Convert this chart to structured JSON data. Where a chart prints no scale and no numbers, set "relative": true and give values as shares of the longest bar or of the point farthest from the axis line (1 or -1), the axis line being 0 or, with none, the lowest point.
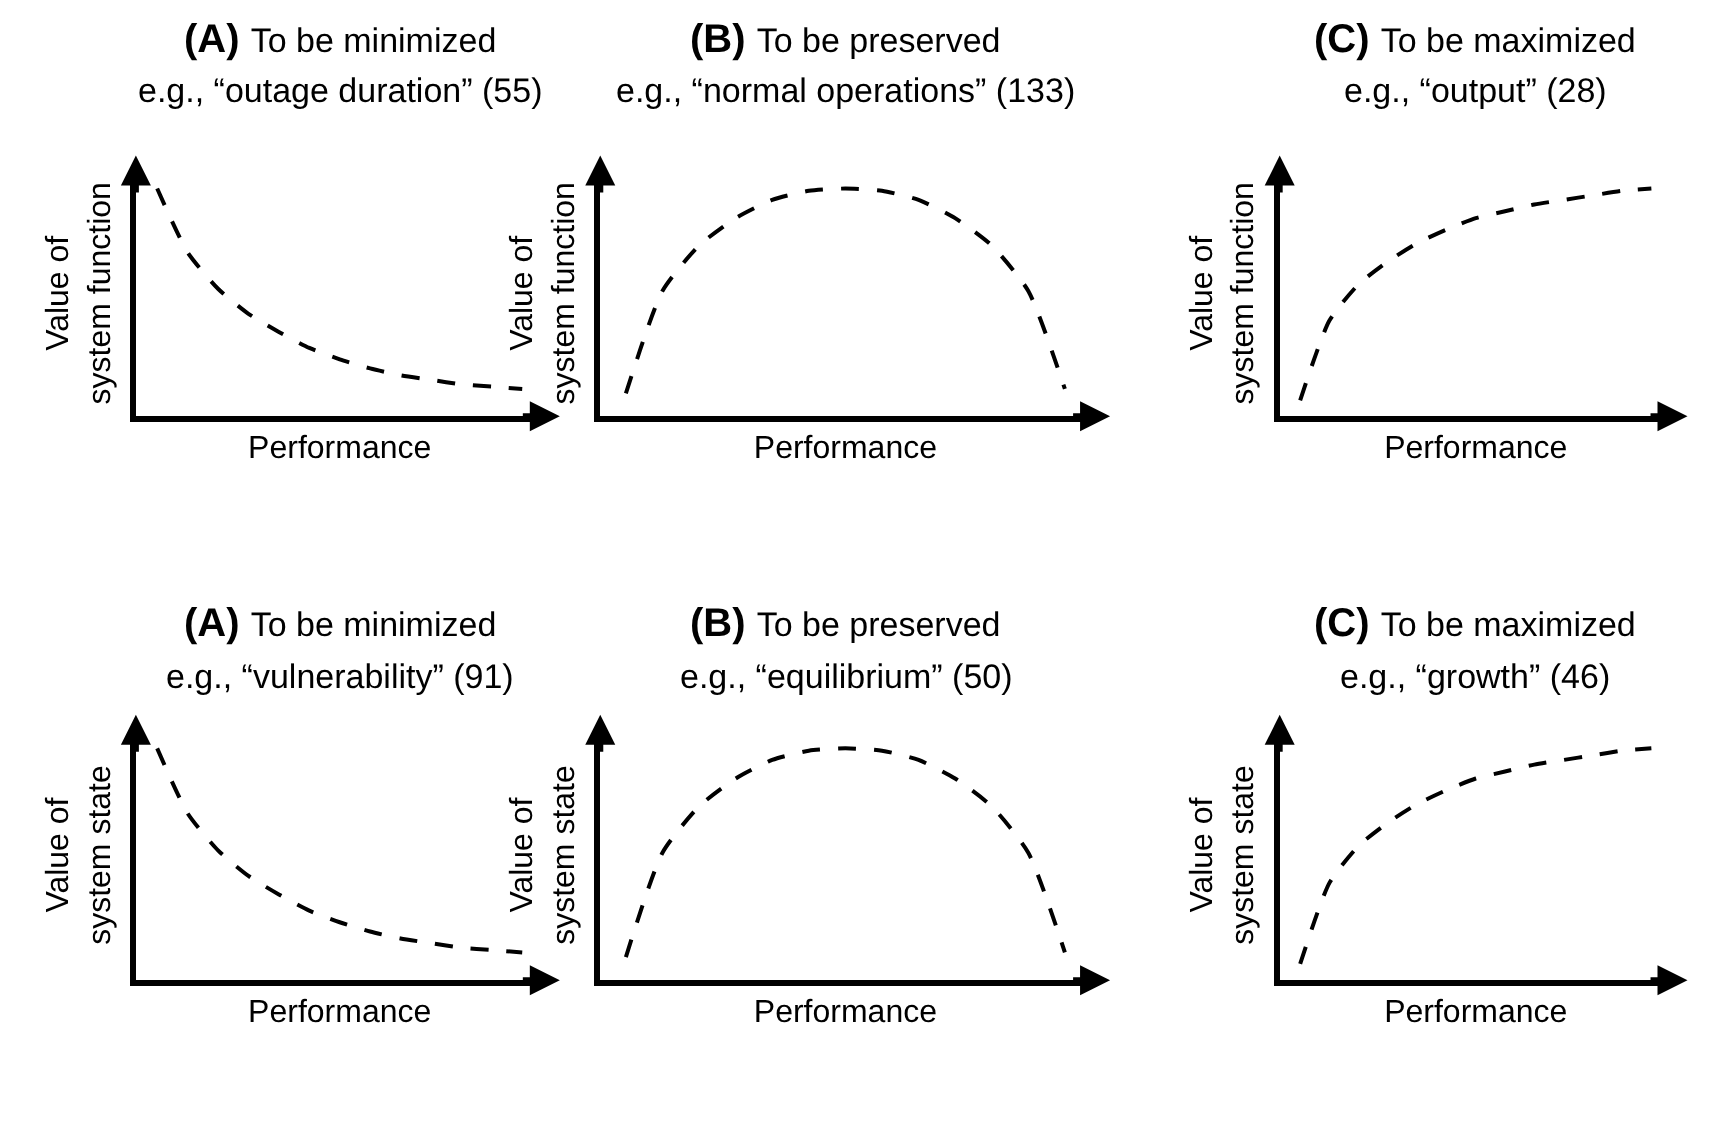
{
  "chart_data": [
    {
      "type": "line",
      "relative": true,
      "title": "(A) To be minimized",
      "subtitle": "e.g., “outage duration” (55)",
      "xlabel": "Performance",
      "ylabel": "Value of system function",
      "tick_labels": false,
      "line_style": "dashed",
      "categories": [
        null,
        null,
        null,
        null,
        null,
        null,
        null,
        null,
        null,
        null,
        null,
        null,
        null
      ],
      "series": [
        {
          "color": "#000000",
          "values": [
            1.0,
            0.72,
            0.56,
            0.45,
            0.37,
            0.3,
            0.25,
            0.21,
            0.18,
            0.16,
            0.14,
            0.13,
            0.12
          ]
        }
      ]
    },
    {
      "type": "line",
      "relative": true,
      "title": "(B) To be preserved",
      "subtitle": "e.g., “normal operations” (133)",
      "xlabel": "Performance",
      "ylabel": "Value of system function",
      "tick_labels": false,
      "line_style": "dashed",
      "categories": [
        null,
        null,
        null,
        null,
        null,
        null,
        null,
        null,
        null,
        null,
        null,
        null,
        null
      ],
      "series": [
        {
          "color": "#000000",
          "values": [
            0.1,
            0.55,
            0.75,
            0.87,
            0.95,
            0.99,
            1.0,
            0.99,
            0.95,
            0.87,
            0.75,
            0.55,
            0.12
          ]
        }
      ]
    },
    {
      "type": "line",
      "relative": true,
      "title": "(C) To be maximized",
      "subtitle": "e.g., “output” (28)",
      "xlabel": "Performance",
      "ylabel": "Value of system function",
      "tick_labels": false,
      "line_style": "dashed",
      "categories": [
        null,
        null,
        null,
        null,
        null,
        null,
        null,
        null,
        null,
        null,
        null,
        null,
        null
      ],
      "series": [
        {
          "color": "#000000",
          "values": [
            0.07,
            0.42,
            0.58,
            0.68,
            0.76,
            0.82,
            0.87,
            0.9,
            0.93,
            0.95,
            0.97,
            0.99,
            1.0
          ]
        }
      ]
    },
    {
      "type": "line",
      "relative": true,
      "title": "(A) To be minimized",
      "subtitle": "e.g., “vulnerability” (91)",
      "xlabel": "Performance",
      "ylabel": "Value of system state",
      "tick_labels": false,
      "line_style": "dashed",
      "categories": [
        null,
        null,
        null,
        null,
        null,
        null,
        null,
        null,
        null,
        null,
        null,
        null,
        null
      ],
      "series": [
        {
          "color": "#000000",
          "values": [
            1.0,
            0.72,
            0.56,
            0.45,
            0.37,
            0.3,
            0.25,
            0.21,
            0.18,
            0.16,
            0.14,
            0.13,
            0.12
          ]
        }
      ]
    },
    {
      "type": "line",
      "relative": true,
      "title": "(B) To be preserved",
      "subtitle": "e.g., “equilibrium” (50)",
      "xlabel": "Performance",
      "ylabel": "Value of system state",
      "tick_labels": false,
      "line_style": "dashed",
      "categories": [
        null,
        null,
        null,
        null,
        null,
        null,
        null,
        null,
        null,
        null,
        null,
        null,
        null
      ],
      "series": [
        {
          "color": "#000000",
          "values": [
            0.1,
            0.55,
            0.75,
            0.87,
            0.95,
            0.99,
            1.0,
            0.99,
            0.95,
            0.87,
            0.75,
            0.55,
            0.12
          ]
        }
      ]
    },
    {
      "type": "line",
      "relative": true,
      "title": "(C) To be maximized",
      "subtitle": "e.g., “growth” (46)",
      "xlabel": "Performance",
      "ylabel": "Value of system state",
      "tick_labels": false,
      "line_style": "dashed",
      "categories": [
        null,
        null,
        null,
        null,
        null,
        null,
        null,
        null,
        null,
        null,
        null,
        null,
        null
      ],
      "series": [
        {
          "color": "#000000",
          "values": [
            0.07,
            0.42,
            0.58,
            0.68,
            0.76,
            0.82,
            0.87,
            0.9,
            0.93,
            0.95,
            0.97,
            0.99,
            1.0
          ]
        }
      ]
    }
  ]
}
